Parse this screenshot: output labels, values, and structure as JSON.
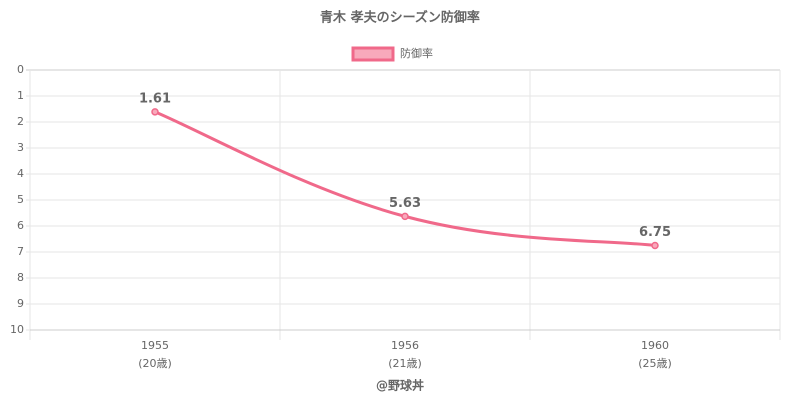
{
  "chart_data": {
    "type": "line",
    "title": "青木 孝夫のシーズン防御率",
    "categories": [
      [
        "1955",
        "(20歳)"
      ],
      [
        "1956",
        "(21歳)"
      ],
      [
        "1960",
        "(25歳)"
      ]
    ],
    "series": [
      {
        "name": "防御率",
        "color": "#f0698a",
        "values": [
          1.61,
          5.63,
          6.75
        ]
      }
    ],
    "ylim": [
      0,
      10
    ],
    "yticks": [
      0,
      1,
      2,
      3,
      4,
      5,
      6,
      7,
      8,
      9,
      10
    ],
    "y_reversed": true,
    "grid": true,
    "legend": "top",
    "footer": "@野球丼"
  }
}
